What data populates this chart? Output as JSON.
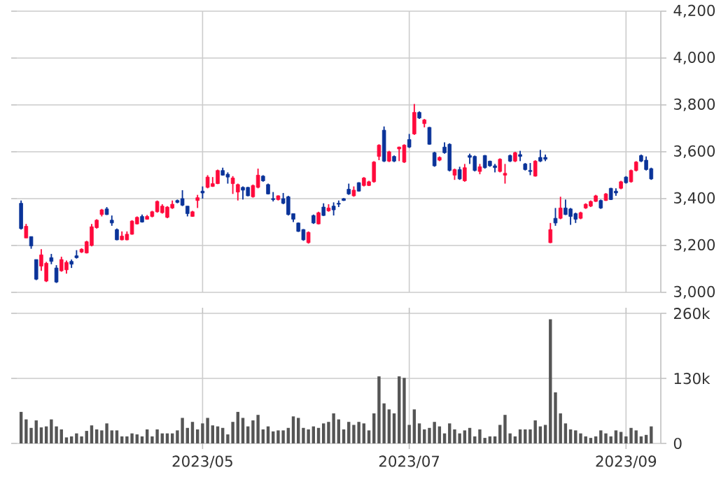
{
  "chart_data": [
    {
      "type": "candlestick",
      "categories": [
        null,
        null,
        null,
        null,
        null,
        null,
        null,
        null,
        null,
        null,
        null,
        null,
        null,
        null,
        null,
        null,
        null,
        null,
        null,
        null,
        null,
        null,
        null,
        null,
        null,
        null,
        null,
        null,
        null,
        null,
        null,
        null,
        null,
        null,
        null,
        null,
        "2023/05",
        null,
        null,
        null,
        null,
        null,
        null,
        null,
        null,
        null,
        null,
        null,
        null,
        null,
        null,
        null,
        null,
        null,
        null,
        null,
        null,
        null,
        null,
        null,
        null,
        null,
        null,
        null,
        null,
        null,
        null,
        null,
        null,
        null,
        null,
        null,
        null,
        null,
        null,
        null,
        null,
        "2023/07",
        null,
        null,
        null,
        null,
        null,
        null,
        null,
        null,
        null,
        null,
        null,
        null,
        null,
        null,
        null,
        null,
        null,
        null,
        null,
        null,
        null,
        null,
        null,
        null,
        null,
        null,
        null,
        null,
        null,
        null,
        null,
        null,
        null,
        null,
        null,
        null,
        null,
        null,
        null,
        null,
        null,
        null,
        "2023/09",
        null,
        null,
        null,
        null,
        null
      ],
      "ohlc": [
        [
          3380,
          3392,
          3268,
          3272
        ],
        [
          3232,
          3292,
          3232,
          3282
        ],
        [
          3238,
          3238,
          3186,
          3198
        ],
        [
          3140,
          3140,
          3052,
          3056
        ],
        [
          3112,
          3184,
          3092,
          3160
        ],
        [
          3048,
          3130,
          3044,
          3124
        ],
        [
          3148,
          3164,
          3120,
          3132
        ],
        [
          3104,
          3116,
          3040,
          3044
        ],
        [
          3092,
          3152,
          3088,
          3140
        ],
        [
          3096,
          3136,
          3080,
          3128
        ],
        [
          3132,
          3140,
          3104,
          3120
        ],
        [
          3156,
          3180,
          3144,
          3148
        ],
        [
          3172,
          3188,
          3168,
          3184
        ],
        [
          3168,
          3220,
          3166,
          3216
        ],
        [
          3200,
          3292,
          3196,
          3280
        ],
        [
          3276,
          3312,
          3272,
          3308
        ],
        [
          3332,
          3356,
          3324,
          3352
        ],
        [
          3356,
          3364,
          3330,
          3332
        ],
        [
          3308,
          3328,
          3284,
          3296
        ],
        [
          3268,
          3272,
          3222,
          3224
        ],
        [
          3224,
          3260,
          3222,
          3240
        ],
        [
          3224,
          3260,
          3222,
          3248
        ],
        [
          3248,
          3308,
          3246,
          3304
        ],
        [
          3292,
          3324,
          3290,
          3320
        ],
        [
          3324,
          3332,
          3298,
          3300
        ],
        [
          3312,
          3330,
          3310,
          3324
        ],
        [
          3324,
          3348,
          3320,
          3344
        ],
        [
          3344,
          3392,
          3340,
          3388
        ],
        [
          3340,
          3376,
          3336,
          3368
        ],
        [
          3320,
          3368,
          3316,
          3364
        ],
        [
          3360,
          3392,
          3356,
          3376
        ],
        [
          3392,
          3396,
          3380,
          3384
        ],
        [
          3400,
          3436,
          3368,
          3372
        ],
        [
          3368,
          3368,
          3324,
          3336
        ],
        [
          3324,
          3348,
          3322,
          3344
        ],
        [
          3392,
          3416,
          3360,
          3404
        ],
        [
          3432,
          3452,
          3400,
          3424
        ],
        [
          3448,
          3500,
          3444,
          3492
        ],
        [
          3452,
          3492,
          3450,
          3464
        ],
        [
          3464,
          3524,
          3462,
          3520
        ],
        [
          3520,
          3532,
          3498,
          3500
        ],
        [
          3504,
          3512,
          3464,
          3492
        ],
        [
          3464,
          3496,
          3420,
          3488
        ],
        [
          3428,
          3464,
          3392,
          3460
        ],
        [
          3448,
          3452,
          3396,
          3436
        ],
        [
          3448,
          3450,
          3410,
          3412
        ],
        [
          3408,
          3460,
          3404,
          3456
        ],
        [
          3448,
          3528,
          3444,
          3500
        ],
        [
          3496,
          3500,
          3472,
          3476
        ],
        [
          3460,
          3464,
          3418,
          3420
        ],
        [
          3400,
          3428,
          3388,
          3396
        ],
        [
          3396,
          3414,
          3392,
          3412
        ],
        [
          3400,
          3424,
          3376,
          3380
        ],
        [
          3408,
          3412,
          3328,
          3332
        ],
        [
          3336,
          3336,
          3300,
          3312
        ],
        [
          3296,
          3298,
          3258,
          3260
        ],
        [
          3268,
          3270,
          3220,
          3224
        ],
        [
          3212,
          3260,
          3208,
          3256
        ],
        [
          3328,
          3332,
          3292,
          3296
        ],
        [
          3292,
          3344,
          3290,
          3340
        ],
        [
          3364,
          3380,
          3326,
          3328
        ],
        [
          3348,
          3376,
          3344,
          3360
        ],
        [
          3368,
          3384,
          3328,
          3352
        ],
        [
          3380,
          3392,
          3364,
          3376
        ],
        [
          3400,
          3402,
          3390,
          3392
        ],
        [
          3440,
          3464,
          3416,
          3420
        ],
        [
          3412,
          3452,
          3408,
          3436
        ],
        [
          3468,
          3470,
          3430,
          3432
        ],
        [
          3456,
          3492,
          3452,
          3488
        ],
        [
          3456,
          3476,
          3454,
          3472
        ],
        [
          3472,
          3560,
          3468,
          3556
        ],
        [
          3580,
          3632,
          3564,
          3628
        ],
        [
          3692,
          3708,
          3556,
          3560
        ],
        [
          3560,
          3604,
          3556,
          3600
        ],
        [
          3580,
          3584,
          3556,
          3560
        ],
        [
          3612,
          3622,
          3560,
          3620
        ],
        [
          3556,
          3632,
          3552,
          3628
        ],
        [
          3652,
          3676,
          3616,
          3620
        ],
        [
          3676,
          3804,
          3672,
          3768
        ],
        [
          3768,
          3772,
          3740,
          3744
        ],
        [
          3720,
          3740,
          3704,
          3736
        ],
        [
          3704,
          3706,
          3630,
          3632
        ],
        [
          3596,
          3600,
          3536,
          3540
        ],
        [
          3564,
          3580,
          3560,
          3576
        ],
        [
          3620,
          3640,
          3592,
          3596
        ],
        [
          3632,
          3636,
          3516,
          3520
        ],
        [
          3500,
          3528,
          3480,
          3524
        ],
        [
          3524,
          3536,
          3480,
          3484
        ],
        [
          3476,
          3548,
          3472,
          3532
        ],
        [
          3584,
          3592,
          3548,
          3576
        ],
        [
          3580,
          3584,
          3516,
          3520
        ],
        [
          3516,
          3548,
          3504,
          3536
        ],
        [
          3584,
          3586,
          3528,
          3532
        ],
        [
          3560,
          3562,
          3536,
          3540
        ],
        [
          3540,
          3548,
          3512,
          3532
        ],
        [
          3516,
          3572,
          3512,
          3568
        ],
        [
          3500,
          3548,
          3464,
          3508
        ],
        [
          3584,
          3588,
          3556,
          3560
        ],
        [
          3560,
          3600,
          3556,
          3596
        ],
        [
          3588,
          3604,
          3560,
          3580
        ],
        [
          3548,
          3552,
          3520,
          3524
        ],
        [
          3520,
          3552,
          3500,
          3516
        ],
        [
          3496,
          3564,
          3494,
          3560
        ],
        [
          3576,
          3608,
          3556,
          3560
        ],
        [
          3576,
          3588,
          3560,
          3568
        ],
        [
          3212,
          3296,
          3210,
          3268
        ],
        [
          3316,
          3360,
          3284,
          3296
        ],
        [
          3316,
          3408,
          3312,
          3360
        ],
        [
          3360,
          3396,
          3330,
          3332
        ],
        [
          3356,
          3360,
          3288,
          3324
        ],
        [
          3336,
          3340,
          3296,
          3312
        ],
        [
          3316,
          3344,
          3312,
          3340
        ],
        [
          3360,
          3380,
          3356,
          3376
        ],
        [
          3368,
          3392,
          3364,
          3388
        ],
        [
          3388,
          3416,
          3386,
          3412
        ],
        [
          3392,
          3396,
          3356,
          3360
        ],
        [
          3392,
          3424,
          3390,
          3420
        ],
        [
          3444,
          3446,
          3394,
          3396
        ],
        [
          3432,
          3444,
          3412,
          3424
        ],
        [
          3444,
          3476,
          3440,
          3472
        ],
        [
          3492,
          3496,
          3464,
          3468
        ],
        [
          3472,
          3524,
          3468,
          3520
        ],
        [
          3520,
          3560,
          3516,
          3556
        ],
        [
          3584,
          3588,
          3556,
          3560
        ],
        [
          3564,
          3580,
          3520,
          3524
        ],
        [
          3528,
          3532,
          3480,
          3484
        ]
      ],
      "colors": [
        "#0a3399",
        "#ff0a3c",
        "#0a3399",
        "#0a3399",
        "#ff0a3c",
        "#ff0a3c",
        "#0a3399",
        "#0a3399",
        "#ff0a3c",
        "#ff0a3c",
        "#0a3399",
        "#0a3399",
        "#ff0a3c",
        "#ff0a3c",
        "#ff0a3c",
        "#ff0a3c",
        "#ff0a3c",
        "#0a3399",
        "#0a3399",
        "#0a3399",
        "#ff0a3c",
        "#ff0a3c",
        "#ff0a3c",
        "#ff0a3c",
        "#0a3399",
        "#ff0a3c",
        "#ff0a3c",
        "#ff0a3c",
        "#ff0a3c",
        "#ff0a3c",
        "#ff0a3c",
        "#0a3399",
        "#0a3399",
        "#0a3399",
        "#ff0a3c",
        "#ff0a3c",
        "#0a3399",
        "#ff0a3c",
        "#ff0a3c",
        "#ff0a3c",
        "#0a3399",
        "#0a3399",
        "#ff0a3c",
        "#ff0a3c",
        "#0a3399",
        "#0a3399",
        "#ff0a3c",
        "#ff0a3c",
        "#0a3399",
        "#0a3399",
        "#0a3399",
        "#ff0a3c",
        "#0a3399",
        "#0a3399",
        "#0a3399",
        "#0a3399",
        "#0a3399",
        "#ff0a3c",
        "#0a3399",
        "#ff0a3c",
        "#0a3399",
        "#ff0a3c",
        "#0a3399",
        "#0a3399",
        "#0a3399",
        "#0a3399",
        "#ff0a3c",
        "#0a3399",
        "#ff0a3c",
        "#ff0a3c",
        "#ff0a3c",
        "#ff0a3c",
        "#0a3399",
        "#ff0a3c",
        "#0a3399",
        "#ff0a3c",
        "#ff0a3c",
        "#0a3399",
        "#ff0a3c",
        "#0a3399",
        "#ff0a3c",
        "#0a3399",
        "#0a3399",
        "#ff0a3c",
        "#0a3399",
        "#0a3399",
        "#ff0a3c",
        "#0a3399",
        "#ff0a3c",
        "#0a3399",
        "#0a3399",
        "#ff0a3c",
        "#0a3399",
        "#0a3399",
        "#0a3399",
        "#ff0a3c",
        "#ff0a3c",
        "#0a3399",
        "#ff0a3c",
        "#0a3399",
        "#0a3399",
        "#0a3399",
        "#ff0a3c",
        "#0a3399",
        "#0a3399",
        "#ff0a3c",
        "#0a3399",
        "#ff0a3c",
        "#0a3399",
        "#0a3399",
        "#0a3399",
        "#ff0a3c",
        "#ff0a3c",
        "#ff0a3c",
        "#ff0a3c",
        "#0a3399",
        "#ff0a3c",
        "#0a3399",
        "#0a3399",
        "#ff0a3c",
        "#0a3399",
        "#ff0a3c",
        "#ff0a3c",
        "#0a3399",
        "#0a3399",
        "#0a3399"
      ],
      "ylim": [
        3000,
        4200
      ],
      "yticks": [
        {
          "value": 3000,
          "label": "3,000"
        },
        {
          "value": 3200,
          "label": "3,200"
        },
        {
          "value": 3400,
          "label": "3,400"
        },
        {
          "value": 3600,
          "label": "3,600"
        },
        {
          "value": 3800,
          "label": "3,800"
        },
        {
          "value": 4000,
          "label": "4,000"
        },
        {
          "value": 4200,
          "label": "4,200"
        }
      ],
      "grid": true,
      "tick_labels": "y"
    },
    {
      "type": "bar",
      "categories": [
        null,
        null,
        null,
        null,
        null,
        null,
        null,
        null,
        null,
        null,
        null,
        null,
        null,
        null,
        null,
        null,
        null,
        null,
        null,
        null,
        null,
        null,
        null,
        null,
        null,
        null,
        null,
        null,
        null,
        null,
        null,
        null,
        null,
        null,
        null,
        null,
        "2023/05",
        null,
        null,
        null,
        null,
        null,
        null,
        null,
        null,
        null,
        null,
        null,
        null,
        null,
        null,
        null,
        null,
        null,
        null,
        null,
        null,
        null,
        null,
        null,
        null,
        null,
        null,
        null,
        null,
        null,
        null,
        null,
        null,
        null,
        null,
        null,
        null,
        null,
        null,
        null,
        null,
        "2023/07",
        null,
        null,
        null,
        null,
        null,
        null,
        null,
        null,
        null,
        null,
        null,
        null,
        null,
        null,
        null,
        null,
        null,
        null,
        null,
        null,
        null,
        null,
        null,
        null,
        null,
        null,
        null,
        null,
        null,
        null,
        null,
        null,
        null,
        null,
        null,
        null,
        null,
        null,
        null,
        null,
        null,
        null,
        "2023/09",
        null,
        null,
        null,
        null,
        null
      ],
      "values": [
        63000,
        48000,
        31000,
        46000,
        32000,
        34000,
        48000,
        34000,
        28000,
        12000,
        14000,
        20000,
        14000,
        25000,
        36000,
        28000,
        26000,
        40000,
        26000,
        26000,
        14000,
        14000,
        20000,
        18000,
        14000,
        28000,
        14000,
        28000,
        20000,
        20000,
        20000,
        26000,
        51000,
        31000,
        43000,
        28000,
        40000,
        51000,
        36000,
        34000,
        31000,
        18000,
        43000,
        63000,
        51000,
        34000,
        46000,
        57000,
        28000,
        34000,
        24000,
        26000,
        26000,
        31000,
        54000,
        51000,
        31000,
        28000,
        34000,
        31000,
        40000,
        43000,
        60000,
        48000,
        28000,
        43000,
        37000,
        43000,
        40000,
        26000,
        60000,
        134000,
        80000,
        68000,
        60000,
        134000,
        131000,
        37000,
        68000,
        40000,
        28000,
        31000,
        43000,
        34000,
        20000,
        40000,
        28000,
        20000,
        26000,
        31000,
        14000,
        28000,
        11000,
        14000,
        14000,
        37000,
        57000,
        20000,
        14000,
        28000,
        28000,
        28000,
        46000,
        34000,
        37000,
        248000,
        102000,
        60000,
        40000,
        28000,
        26000,
        20000,
        14000,
        11000,
        14000,
        26000,
        20000,
        14000,
        26000,
        23000,
        14000,
        31000,
        26000,
        14000,
        17000,
        34000
      ],
      "color": "#555555",
      "ylim": [
        0,
        260000
      ],
      "yticks": [
        0,
        {
          "value": 130000,
          "label": "130k"
        },
        {
          "value": 260000,
          "label": "260k"
        }
      ],
      "grid": true
    }
  ]
}
